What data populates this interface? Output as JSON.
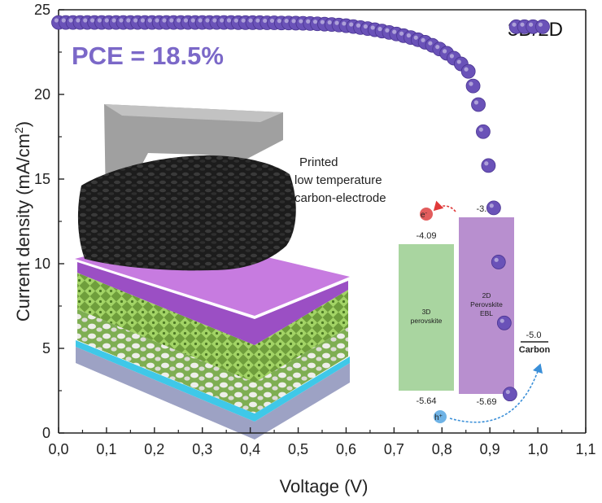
{
  "chart_data": {
    "type": "scatter",
    "xlabel": "Voltage (V)",
    "ylabel": "Current density (mA/cm",
    "ylabel_sup": "2",
    "ylabel_end": ")",
    "xlim": [
      0.0,
      1.1
    ],
    "ylim": [
      0,
      25
    ],
    "xticks": [
      "0,0",
      "0,1",
      "0,2",
      "0,3",
      "0,4",
      "0,5",
      "0,6",
      "0,7",
      "0,8",
      "0,9",
      "1,0",
      "1,1"
    ],
    "yticks": [
      "0",
      "5",
      "10",
      "15",
      "20",
      "25"
    ],
    "legend_label": "3D/2D",
    "marker_color": "#6a52b8",
    "series": [
      {
        "x": [
          0.0,
          0.015,
          0.03,
          0.045,
          0.06,
          0.075,
          0.09,
          0.105,
          0.12,
          0.135,
          0.15,
          0.165,
          0.18,
          0.195,
          0.21,
          0.225,
          0.24,
          0.255,
          0.27,
          0.285,
          0.3,
          0.315,
          0.33,
          0.345,
          0.36,
          0.375,
          0.39,
          0.405,
          0.42,
          0.435,
          0.45,
          0.465,
          0.48,
          0.495,
          0.51,
          0.525,
          0.54,
          0.555,
          0.57,
          0.585,
          0.6,
          0.615,
          0.63,
          0.645,
          0.66,
          0.675,
          0.69,
          0.705,
          0.72,
          0.735,
          0.75,
          0.765,
          0.78,
          0.795,
          0.81,
          0.825,
          0.84,
          0.855,
          0.865,
          0.876,
          0.886,
          0.897,
          0.908,
          0.918,
          0.93,
          0.942,
          0.955,
          0.972,
          0.99,
          1.01
        ],
        "y": [
          24.25,
          24.25,
          24.25,
          24.25,
          24.25,
          24.25,
          24.25,
          24.25,
          24.25,
          24.25,
          24.25,
          24.25,
          24.25,
          24.25,
          24.25,
          24.25,
          24.25,
          24.25,
          24.25,
          24.25,
          24.25,
          24.25,
          24.25,
          24.25,
          24.25,
          24.24,
          24.24,
          24.24,
          24.24,
          24.23,
          24.23,
          24.22,
          24.22,
          24.21,
          24.2,
          24.19,
          24.17,
          24.15,
          24.13,
          24.1,
          24.06,
          24.01,
          23.95,
          23.89,
          23.82,
          23.74,
          23.66,
          23.57,
          23.47,
          23.36,
          23.23,
          23.08,
          22.9,
          22.68,
          22.43,
          22.14,
          21.8,
          21.36,
          20.5,
          19.4,
          17.8,
          15.8,
          13.3,
          10.1,
          6.5,
          2.3,
          24.0,
          24.0,
          24.0,
          24.0
        ]
      }
    ]
  },
  "annotations": {
    "pce": "PCE = 18.5%",
    "electrode_line1": "Printed",
    "electrode_line2": "low temperature",
    "electrode_line3": "carbon-electrode"
  },
  "energy_diagram": {
    "perovskite3d_line1": "3D",
    "perovskite3d_line2": "perovskite",
    "perovskite3d_top": "-4.09",
    "perovskite3d_bottom": "-5.64",
    "perovskite2d_line1": "2D",
    "perovskite2d_line2": "Perovskite",
    "perovskite2d_line3": "EBL",
    "perovskite2d_top": "-3.56",
    "perovskite2d_bottom": "-5.69",
    "carbon_level": "-5.0",
    "carbon_label": "Carbon",
    "electron": "e",
    "electron_sup": "-",
    "hole": "h",
    "hole_sup": "+"
  },
  "colors": {
    "marker": "#6a52b8",
    "pce_text": "#7b68c8",
    "box3d": "#a9d5a0",
    "box2d": "#b88fcf",
    "electron": "#e25d5d",
    "hole": "#6fb3e6",
    "arrow_electron": "#e03a3a",
    "arrow_hole": "#3a8fd8"
  }
}
